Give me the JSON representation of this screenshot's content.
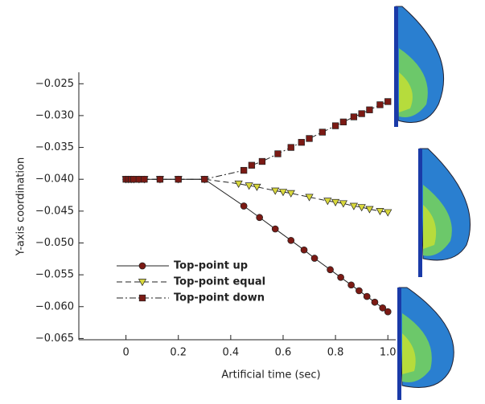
{
  "chart_data": {
    "type": "line",
    "xlabel": "Artificial time (sec)",
    "ylabel": "Y-axis coordination",
    "xlim": [
      -0.18,
      1.03
    ],
    "ylim": [
      -0.0652,
      -0.0232
    ],
    "xticks": [
      0,
      0.2,
      0.4,
      0.6,
      0.8,
      {
        "value": 1,
        "label": "1.0"
      }
    ],
    "yticks": [
      {
        "value": -0.025,
        "label": "−0.025"
      },
      {
        "value": -0.03,
        "label": "−0.030"
      },
      {
        "value": -0.035,
        "label": "−0.035"
      },
      {
        "value": -0.04,
        "label": "−0.040"
      },
      {
        "value": -0.045,
        "label": "−0.045"
      },
      {
        "value": -0.05,
        "label": "−0.050"
      },
      {
        "value": -0.055,
        "label": "−0.055"
      },
      {
        "value": -0.06,
        "label": "−0.060"
      },
      {
        "value": -0.065,
        "label": "−0.065"
      }
    ],
    "legend": "lower left",
    "series": [
      {
        "name": "Top-point up",
        "color": "#7b1a14",
        "marker": "circle",
        "line_style": "solid",
        "x": [
          0,
          0.01,
          0.02,
          0.03,
          0.05,
          0.07,
          0.13,
          0.2,
          0.3,
          0.45,
          0.51,
          0.57,
          0.63,
          0.68,
          0.72,
          0.78,
          0.82,
          0.86,
          0.89,
          0.92,
          0.95,
          0.98,
          1.0
        ],
        "values": [
          -0.04,
          -0.04,
          -0.04,
          -0.04,
          -0.04,
          -0.04,
          -0.04,
          -0.04,
          -0.04,
          -0.0442,
          -0.046,
          -0.0478,
          -0.0496,
          -0.0511,
          -0.0524,
          -0.0542,
          -0.0554,
          -0.0566,
          -0.0575,
          -0.0584,
          -0.0593,
          -0.0602,
          -0.0608
        ]
      },
      {
        "name": "Top-point equal",
        "color": "#d9d83c",
        "marker": "triangle",
        "line_style": "dashed",
        "x": [
          0,
          0.01,
          0.02,
          0.03,
          0.05,
          0.07,
          0.13,
          0.2,
          0.3,
          0.43,
          0.47,
          0.5,
          0.57,
          0.6,
          0.63,
          0.7,
          0.77,
          0.8,
          0.83,
          0.87,
          0.9,
          0.93,
          0.97,
          1.0
        ],
        "values": [
          -0.04,
          -0.04,
          -0.04,
          -0.04,
          -0.04,
          -0.04,
          -0.04,
          -0.04,
          -0.04,
          -0.0407,
          -0.041,
          -0.0412,
          -0.0418,
          -0.042,
          -0.0422,
          -0.0428,
          -0.0434,
          -0.0436,
          -0.0438,
          -0.0442,
          -0.0444,
          -0.0447,
          -0.045,
          -0.0452
        ]
      },
      {
        "name": "Top-point down",
        "color": "#7b1a14",
        "marker": "square",
        "line_style": "dashdot",
        "x": [
          0,
          0.01,
          0.02,
          0.03,
          0.05,
          0.07,
          0.13,
          0.2,
          0.3,
          0.45,
          0.48,
          0.52,
          0.58,
          0.63,
          0.67,
          0.7,
          0.75,
          0.8,
          0.83,
          0.87,
          0.9,
          0.93,
          0.97,
          1.0
        ],
        "values": [
          -0.04,
          -0.04,
          -0.04,
          -0.04,
          -0.04,
          -0.04,
          -0.04,
          -0.04,
          -0.04,
          -0.0386,
          -0.0378,
          -0.0372,
          -0.036,
          -0.035,
          -0.0342,
          -0.0336,
          -0.0326,
          -0.0316,
          -0.031,
          -0.0302,
          -0.0297,
          -0.0291,
          -0.0283,
          -0.0278
        ]
      }
    ]
  }
}
